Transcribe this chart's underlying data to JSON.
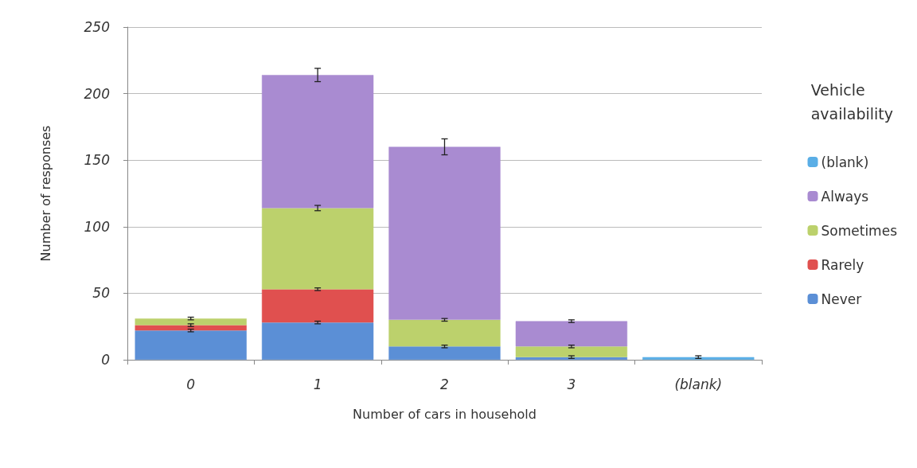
{
  "chart_data": {
    "type": "bar",
    "stacked": true,
    "xlabel": "Number of cars in household",
    "ylabel": "Number of responses",
    "legend_title": "Vehicle availability",
    "categories": [
      "0",
      "1",
      "2",
      "3",
      "(blank)"
    ],
    "series": [
      {
        "name": "Never",
        "color": "#5b8fd6",
        "values": [
          22,
          28,
          10,
          2,
          null
        ],
        "errors": [
          1,
          1,
          1,
          1,
          null
        ]
      },
      {
        "name": "Rarely",
        "color": "#e0504f",
        "values": [
          4,
          25,
          null,
          null,
          null
        ],
        "errors": [
          1,
          1,
          null,
          null,
          null
        ]
      },
      {
        "name": "Sometimes",
        "color": "#bcd16c",
        "values": [
          5,
          61,
          20,
          8,
          null
        ],
        "errors": [
          1,
          2,
          1,
          1,
          null
        ]
      },
      {
        "name": "Always",
        "color": "#a98bd1",
        "values": [
          null,
          100,
          130,
          19,
          null
        ],
        "errors": [
          null,
          5,
          6,
          1,
          null
        ]
      },
      {
        "name": "(blank)",
        "color": "#5aaee6",
        "values": [
          null,
          null,
          null,
          null,
          2
        ],
        "errors": [
          null,
          null,
          null,
          null,
          1
        ]
      }
    ],
    "ylim": [
      0,
      250
    ],
    "yticks": [
      0,
      50,
      100,
      150,
      200,
      250
    ],
    "grid": "y",
    "legend": "right"
  }
}
